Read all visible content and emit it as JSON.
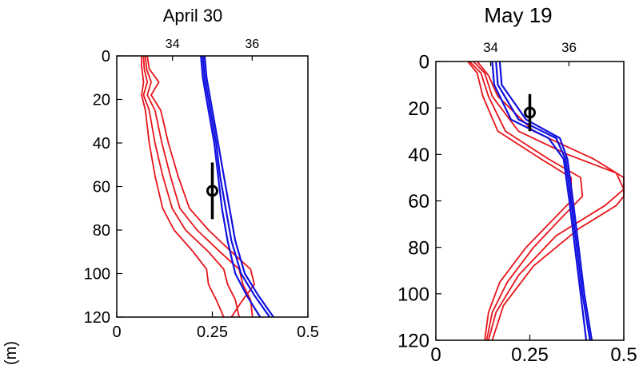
{
  "left_edge_label": "(m)",
  "chart_data": [
    {
      "type": "line",
      "title": "April 30",
      "xlabel": "",
      "ylabel": "",
      "x_bottom_ticks": [
        "0",
        "0.25",
        "0.5"
      ],
      "x_top_ticks": [
        "34",
        "36"
      ],
      "y_ticks": [
        "0",
        "20",
        "40",
        "60",
        "80",
        "100",
        "120"
      ],
      "xlim_bottom": [
        0,
        0.5
      ],
      "xlim_top": [
        32.6,
        37.4
      ],
      "ylim": [
        0,
        120
      ],
      "y_reversed": true,
      "grid": false,
      "series": [
        {
          "axis": "bottom",
          "color": "#e8141a",
          "profiles": [
            [
              [
                0.065,
                0
              ],
              [
                0.065,
                5
              ],
              [
                0.07,
                12
              ],
              [
                0.065,
                18
              ],
              [
                0.075,
                25
              ],
              [
                0.085,
                40
              ],
              [
                0.1,
                55
              ],
              [
                0.12,
                70
              ],
              [
                0.15,
                80
              ],
              [
                0.2,
                90
              ],
              [
                0.235,
                98
              ],
              [
                0.24,
                105
              ],
              [
                0.26,
                112
              ],
              [
                0.28,
                120
              ]
            ],
            [
              [
                0.07,
                0
              ],
              [
                0.072,
                6
              ],
              [
                0.08,
                12
              ],
              [
                0.07,
                18
              ],
              [
                0.085,
                25
              ],
              [
                0.1,
                40
              ],
              [
                0.12,
                55
              ],
              [
                0.145,
                70
              ],
              [
                0.18,
                80
              ],
              [
                0.24,
                90
              ],
              [
                0.28,
                98
              ],
              [
                0.29,
                105
              ],
              [
                0.31,
                112
              ],
              [
                0.32,
                120
              ]
            ],
            [
              [
                0.075,
                0
              ],
              [
                0.078,
                6
              ],
              [
                0.09,
                12
              ],
              [
                0.08,
                18
              ],
              [
                0.1,
                25
              ],
              [
                0.118,
                40
              ],
              [
                0.14,
                55
              ],
              [
                0.165,
                70
              ],
              [
                0.21,
                80
              ],
              [
                0.27,
                90
              ],
              [
                0.32,
                98
              ],
              [
                0.33,
                105
              ],
              [
                0.35,
                112
              ],
              [
                0.355,
                120
              ]
            ],
            [
              [
                0.08,
                0
              ],
              [
                0.085,
                6
              ],
              [
                0.11,
                12
              ],
              [
                0.09,
                18
              ],
              [
                0.115,
                25
              ],
              [
                0.135,
                40
              ],
              [
                0.16,
                55
              ],
              [
                0.19,
                70
              ],
              [
                0.24,
                80
              ],
              [
                0.3,
                90
              ],
              [
                0.35,
                98
              ],
              [
                0.36,
                105
              ],
              [
                0.33,
                112
              ],
              [
                0.3,
                120
              ]
            ]
          ]
        },
        {
          "axis": "bottom",
          "color": "#1010e0",
          "profiles": [
            [
              [
                0.22,
                0
              ],
              [
                0.225,
                10
              ],
              [
                0.24,
                25
              ],
              [
                0.255,
                40
              ],
              [
                0.265,
                55
              ],
              [
                0.275,
                70
              ],
              [
                0.29,
                85
              ],
              [
                0.31,
                100
              ],
              [
                0.34,
                110
              ],
              [
                0.375,
                120
              ]
            ],
            [
              [
                0.225,
                0
              ],
              [
                0.23,
                10
              ],
              [
                0.245,
                25
              ],
              [
                0.26,
                40
              ],
              [
                0.27,
                55
              ],
              [
                0.285,
                70
              ],
              [
                0.3,
                85
              ],
              [
                0.325,
                100
              ],
              [
                0.36,
                110
              ],
              [
                0.4,
                120
              ]
            ],
            [
              [
                0.23,
                0
              ],
              [
                0.235,
                10
              ],
              [
                0.25,
                25
              ],
              [
                0.265,
                40
              ],
              [
                0.28,
                55
              ],
              [
                0.295,
                70
              ],
              [
                0.31,
                85
              ],
              [
                0.335,
                100
              ],
              [
                0.37,
                110
              ],
              [
                0.41,
                120
              ]
            ]
          ]
        }
      ],
      "marker": {
        "x": 0.25,
        "y": 62,
        "err": [
          49,
          75
        ]
      }
    },
    {
      "type": "line",
      "title": "May 19",
      "xlabel": "",
      "ylabel": "",
      "x_bottom_ticks": [
        "0",
        "0.25",
        "0.5"
      ],
      "x_top_ticks": [
        "34",
        "36"
      ],
      "y_ticks": [
        "0",
        "20",
        "40",
        "60",
        "80",
        "100",
        "120"
      ],
      "xlim_bottom": [
        0,
        0.5
      ],
      "xlim_top": [
        32.6,
        37.4
      ],
      "ylim": [
        0,
        120
      ],
      "y_reversed": true,
      "grid": false,
      "series": [
        {
          "axis": "bottom",
          "color": "#e8141a",
          "profiles": [
            [
              [
                0.085,
                0
              ],
              [
                0.11,
                5
              ],
              [
                0.125,
                15
              ],
              [
                0.165,
                30
              ],
              [
                0.28,
                42
              ],
              [
                0.36,
                50
              ],
              [
                0.36,
                60
              ],
              [
                0.3,
                70
              ],
              [
                0.24,
                80
              ],
              [
                0.17,
                95
              ],
              [
                0.14,
                108
              ],
              [
                0.13,
                120
              ]
            ],
            [
              [
                0.09,
                0
              ],
              [
                0.12,
                5
              ],
              [
                0.14,
                15
              ],
              [
                0.185,
                30
              ],
              [
                0.3,
                42
              ],
              [
                0.385,
                50
              ],
              [
                0.39,
                58
              ],
              [
                0.33,
                68
              ],
              [
                0.26,
                80
              ],
              [
                0.19,
                95
              ],
              [
                0.15,
                108
              ],
              [
                0.135,
                120
              ]
            ],
            [
              [
                0.1,
                0
              ],
              [
                0.13,
                5
              ],
              [
                0.15,
                15
              ],
              [
                0.22,
                30
              ],
              [
                0.35,
                40
              ],
              [
                0.48,
                48
              ],
              [
                0.5,
                55
              ],
              [
                0.45,
                62
              ],
              [
                0.32,
                75
              ],
              [
                0.22,
                92
              ],
              [
                0.16,
                108
              ],
              [
                0.14,
                120
              ]
            ],
            [
              [
                0.11,
                0
              ],
              [
                0.14,
                6
              ],
              [
                0.165,
                15
              ],
              [
                0.26,
                30
              ],
              [
                0.42,
                42
              ],
              [
                0.5,
                50
              ],
              [
                0.5,
                58
              ],
              [
                0.48,
                62
              ],
              [
                0.38,
                72
              ],
              [
                0.26,
                88
              ],
              [
                0.18,
                105
              ],
              [
                0.15,
                120
              ]
            ]
          ]
        },
        {
          "axis": "bottom",
          "color": "#1010e0",
          "profiles": [
            [
              [
                0.15,
                0
              ],
              [
                0.155,
                10
              ],
              [
                0.2,
                25
              ],
              [
                0.3,
                33
              ],
              [
                0.34,
                42
              ],
              [
                0.355,
                60
              ],
              [
                0.37,
                80
              ],
              [
                0.385,
                100
              ],
              [
                0.4,
                120
              ]
            ],
            [
              [
                0.16,
                0
              ],
              [
                0.165,
                10
              ],
              [
                0.22,
                25
              ],
              [
                0.32,
                33
              ],
              [
                0.345,
                42
              ],
              [
                0.36,
                60
              ],
              [
                0.375,
                80
              ],
              [
                0.39,
                100
              ],
              [
                0.41,
                120
              ]
            ],
            [
              [
                0.17,
                0
              ],
              [
                0.175,
                10
              ],
              [
                0.24,
                25
              ],
              [
                0.33,
                33
              ],
              [
                0.35,
                42
              ],
              [
                0.365,
                60
              ],
              [
                0.38,
                80
              ],
              [
                0.395,
                100
              ],
              [
                0.415,
                120
              ]
            ]
          ]
        }
      ],
      "marker": {
        "x": 0.25,
        "y": 22,
        "err": [
          14,
          30
        ]
      }
    }
  ]
}
